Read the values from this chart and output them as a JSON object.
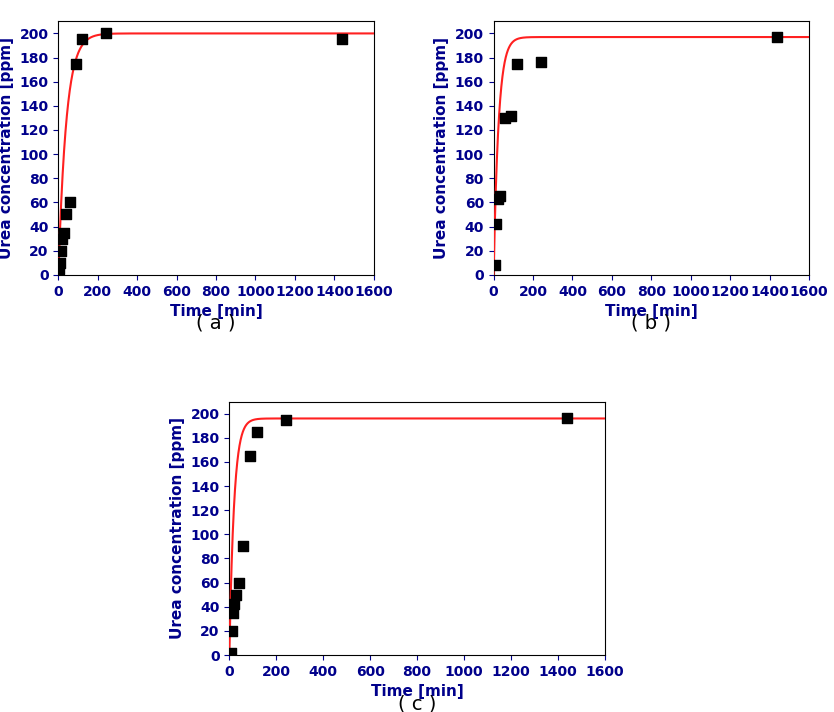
{
  "subplots": [
    {
      "label": "( a )",
      "scatter_x": [
        5,
        10,
        15,
        20,
        30,
        40,
        60,
        90,
        120,
        240,
        1440
      ],
      "scatter_y": [
        5,
        10,
        20,
        30,
        35,
        50,
        60,
        175,
        195,
        200,
        195
      ],
      "curve_A": 200,
      "curve_k": 0.025
    },
    {
      "label": "( b )",
      "scatter_x": [
        5,
        10,
        20,
        30,
        60,
        90,
        120,
        240,
        1440
      ],
      "scatter_y": [
        8,
        42,
        63,
        65,
        130,
        132,
        175,
        176,
        197
      ],
      "curve_A": 197,
      "curve_k": 0.04
    },
    {
      "label": "( c )",
      "scatter_x": [
        5,
        10,
        15,
        20,
        30,
        40,
        60,
        90,
        120,
        240,
        1440
      ],
      "scatter_y": [
        2,
        20,
        35,
        42,
        50,
        60,
        90,
        165,
        185,
        195,
        196
      ],
      "curve_A": 196,
      "curve_k": 0.05
    }
  ],
  "scatter_color": "#000000",
  "scatter_marker": "s",
  "scatter_size": 50,
  "line_color": "#ff2020",
  "line_width": 1.5,
  "xlabel": "Time [min]",
  "ylabel": "Urea concentration [ppm]",
  "xlim": [
    0,
    1600
  ],
  "ylim": [
    0,
    210
  ],
  "xticks": [
    0,
    200,
    400,
    600,
    800,
    1000,
    1200,
    1400,
    1600
  ],
  "yticks": [
    0,
    20,
    40,
    60,
    80,
    100,
    120,
    140,
    160,
    180,
    200
  ],
  "xlabel_fontsize": 11,
  "ylabel_fontsize": 11,
  "tick_fontsize": 10,
  "label_fontsize": 14,
  "label_color": "#000000",
  "tick_color": "#00008B",
  "axis_label_color": "#00008B",
  "background": "#ffffff"
}
